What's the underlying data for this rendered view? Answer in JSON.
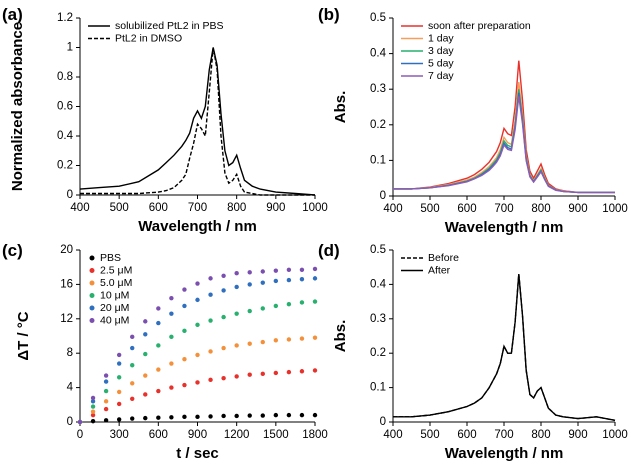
{
  "chart_data": [
    {
      "type": "line",
      "panel_label": "(a)",
      "xlabel": "Wavelength / nm",
      "ylabel": "Normalized absorbance",
      "legend": "upper left",
      "x": [
        400,
        450,
        500,
        550,
        600,
        620,
        640,
        660,
        670,
        680,
        690,
        700,
        710,
        720,
        730,
        740,
        750,
        760,
        770,
        780,
        790,
        800,
        810,
        820,
        840,
        860,
        900,
        950,
        1000
      ],
      "series": [
        {
          "name": "solubilized PtL2 in PBS",
          "color": "#000000",
          "line_style": "solid",
          "values": [
            0.04,
            0.05,
            0.06,
            0.09,
            0.17,
            0.22,
            0.27,
            0.33,
            0.37,
            0.42,
            0.52,
            0.57,
            0.52,
            0.6,
            0.85,
            1.0,
            0.88,
            0.55,
            0.3,
            0.2,
            0.22,
            0.27,
            0.18,
            0.1,
            0.06,
            0.04,
            0.02,
            0.01,
            0
          ]
        },
        {
          "name": "PtL2 in DMSO",
          "color": "#000000",
          "line_style": "dashed",
          "values": [
            0.01,
            0.01,
            0.01,
            0.01,
            0.02,
            0.03,
            0.05,
            0.1,
            0.14,
            0.25,
            0.35,
            0.48,
            0.45,
            0.4,
            0.7,
            1.0,
            0.85,
            0.4,
            0.15,
            0.08,
            0.1,
            0.14,
            0.06,
            0.02,
            0.01,
            0,
            0,
            0,
            0
          ]
        }
      ],
      "xlim": [
        400,
        1000
      ],
      "xticks": [
        400,
        500,
        600,
        700,
        800,
        900,
        1000
      ],
      "ylim": [
        0,
        1.2
      ],
      "yticks": [
        0,
        0.2,
        0.4,
        0.6,
        0.8,
        1,
        1.2
      ]
    },
    {
      "type": "line",
      "panel_label": "(b)",
      "xlabel": "Wavelength / nm",
      "ylabel": "Abs.",
      "legend": "upper left",
      "x": [
        400,
        450,
        500,
        550,
        600,
        620,
        640,
        660,
        670,
        680,
        690,
        700,
        710,
        720,
        730,
        740,
        750,
        760,
        770,
        780,
        790,
        800,
        810,
        820,
        840,
        860,
        900,
        950,
        1000
      ],
      "series": [
        {
          "name": "soon after preparation",
          "color": "#e8312b",
          "line_style": "solid",
          "values": [
            0.02,
            0.02,
            0.025,
            0.035,
            0.05,
            0.06,
            0.075,
            0.095,
            0.11,
            0.125,
            0.15,
            0.19,
            0.175,
            0.17,
            0.25,
            0.38,
            0.27,
            0.13,
            0.07,
            0.05,
            0.07,
            0.09,
            0.06,
            0.035,
            0.02,
            0.015,
            0.01,
            0.01,
            0.01
          ]
        },
        {
          "name": "1 day",
          "color": "#f5a05a",
          "line_style": "solid",
          "values": [
            0.02,
            0.02,
            0.024,
            0.032,
            0.045,
            0.053,
            0.066,
            0.083,
            0.095,
            0.108,
            0.13,
            0.165,
            0.15,
            0.145,
            0.213,
            0.32,
            0.23,
            0.112,
            0.06,
            0.043,
            0.06,
            0.077,
            0.052,
            0.03,
            0.018,
            0.014,
            0.01,
            0.01,
            0.01
          ]
        },
        {
          "name": "3 day",
          "color": "#27b06e",
          "line_style": "solid",
          "values": [
            0.02,
            0.02,
            0.023,
            0.03,
            0.042,
            0.05,
            0.062,
            0.078,
            0.09,
            0.102,
            0.122,
            0.155,
            0.142,
            0.138,
            0.2,
            0.3,
            0.218,
            0.106,
            0.058,
            0.041,
            0.057,
            0.073,
            0.049,
            0.029,
            0.017,
            0.013,
            0.01,
            0.01,
            0.01
          ]
        },
        {
          "name": "5 day",
          "color": "#2e6fc0",
          "line_style": "solid",
          "values": [
            0.02,
            0.02,
            0.023,
            0.03,
            0.041,
            0.049,
            0.06,
            0.075,
            0.086,
            0.098,
            0.117,
            0.148,
            0.136,
            0.132,
            0.193,
            0.29,
            0.21,
            0.102,
            0.056,
            0.04,
            0.055,
            0.07,
            0.047,
            0.028,
            0.017,
            0.013,
            0.01,
            0.01,
            0.01
          ]
        },
        {
          "name": "7 day",
          "color": "#8e5bb5",
          "line_style": "solid",
          "values": [
            0.02,
            0.02,
            0.023,
            0.029,
            0.04,
            0.048,
            0.058,
            0.072,
            0.083,
            0.095,
            0.113,
            0.143,
            0.131,
            0.128,
            0.186,
            0.28,
            0.203,
            0.099,
            0.054,
            0.039,
            0.053,
            0.068,
            0.046,
            0.027,
            0.016,
            0.013,
            0.01,
            0.01,
            0.01
          ]
        }
      ],
      "xlim": [
        400,
        1000
      ],
      "xticks": [
        400,
        500,
        600,
        700,
        800,
        900,
        1000
      ],
      "ylim": [
        0,
        0.5
      ],
      "yticks": [
        0,
        0.1,
        0.2,
        0.3,
        0.4,
        0.5
      ]
    },
    {
      "type": "scatter",
      "panel_label": "(c)",
      "xlabel": "t / sec",
      "ylabel": "ΔT / °C",
      "legend": "upper left",
      "x": [
        0,
        100,
        200,
        300,
        400,
        500,
        600,
        700,
        800,
        900,
        1000,
        1100,
        1200,
        1300,
        1400,
        1500,
        1600,
        1700,
        1800
      ],
      "series": [
        {
          "name": "PBS",
          "color": "#000000",
          "values": [
            0,
            0.1,
            0.2,
            0.3,
            0.4,
            0.45,
            0.5,
            0.55,
            0.6,
            0.6,
            0.65,
            0.7,
            0.7,
            0.75,
            0.75,
            0.8,
            0.8,
            0.8,
            0.8
          ]
        },
        {
          "name": "2.5 μM",
          "color": "#e8312b",
          "values": [
            0,
            0.8,
            1.5,
            2.1,
            2.7,
            3.2,
            3.6,
            4.0,
            4.3,
            4.6,
            4.9,
            5.1,
            5.3,
            5.5,
            5.6,
            5.7,
            5.8,
            5.9,
            6.0
          ]
        },
        {
          "name": "5.0 μM",
          "color": "#f5903a",
          "values": [
            0,
            1.2,
            2.4,
            3.5,
            4.5,
            5.4,
            6.1,
            6.8,
            7.3,
            7.8,
            8.2,
            8.6,
            8.9,
            9.1,
            9.3,
            9.5,
            9.6,
            9.7,
            9.8
          ]
        },
        {
          "name": "10 μM",
          "color": "#27b06e",
          "values": [
            0,
            1.8,
            3.6,
            5.2,
            6.6,
            7.9,
            8.9,
            9.9,
            10.6,
            11.3,
            11.8,
            12.2,
            12.6,
            12.9,
            13.2,
            13.5,
            13.7,
            13.9,
            14.0
          ]
        },
        {
          "name": "20 μM",
          "color": "#2e6fc0",
          "values": [
            0,
            2.4,
            4.7,
            6.8,
            8.6,
            10.2,
            11.5,
            12.6,
            13.5,
            14.2,
            14.8,
            15.3,
            15.7,
            16.0,
            16.2,
            16.4,
            16.5,
            16.6,
            16.7
          ]
        },
        {
          "name": "40 μM",
          "color": "#7a4fb0",
          "values": [
            0,
            2.8,
            5.4,
            7.8,
            9.9,
            11.7,
            13.2,
            14.4,
            15.4,
            16.1,
            16.7,
            17.0,
            17.3,
            17.4,
            17.5,
            17.6,
            17.7,
            17.7,
            17.8
          ]
        }
      ],
      "xlim": [
        0,
        1800
      ],
      "xticks": [
        0,
        300,
        600,
        900,
        1200,
        1500,
        1800
      ],
      "ylim": [
        0,
        20
      ],
      "yticks": [
        0,
        4,
        8,
        12,
        16,
        20
      ]
    },
    {
      "type": "line",
      "panel_label": "(d)",
      "xlabel": "Wavelength / nm",
      "ylabel": "Abs.",
      "legend": "upper left",
      "x": [
        400,
        450,
        500,
        550,
        600,
        620,
        640,
        660,
        670,
        680,
        690,
        700,
        710,
        720,
        730,
        740,
        750,
        760,
        770,
        780,
        790,
        800,
        810,
        820,
        840,
        860,
        900,
        950,
        1000
      ],
      "series": [
        {
          "name": "Before",
          "color": "#000000",
          "line_style": "dashed",
          "values": [
            0.015,
            0.015,
            0.02,
            0.03,
            0.045,
            0.055,
            0.07,
            0.1,
            0.12,
            0.14,
            0.17,
            0.22,
            0.2,
            0.2,
            0.29,
            0.43,
            0.31,
            0.15,
            0.08,
            0.07,
            0.09,
            0.1,
            0.07,
            0.04,
            0.02,
            0.015,
            0.01,
            0.015,
            0.005
          ]
        },
        {
          "name": "After",
          "color": "#000000",
          "line_style": "solid",
          "values": [
            0.015,
            0.015,
            0.02,
            0.03,
            0.045,
            0.055,
            0.07,
            0.1,
            0.12,
            0.14,
            0.17,
            0.22,
            0.2,
            0.2,
            0.29,
            0.43,
            0.31,
            0.15,
            0.08,
            0.07,
            0.09,
            0.1,
            0.07,
            0.04,
            0.02,
            0.015,
            0.01,
            0.015,
            0.005
          ]
        }
      ],
      "xlim": [
        400,
        1000
      ],
      "xticks": [
        400,
        500,
        600,
        700,
        800,
        900,
        1000
      ],
      "ylim": [
        0,
        0.5
      ],
      "yticks": [
        0,
        0.1,
        0.2,
        0.3,
        0.4,
        0.5
      ]
    }
  ]
}
